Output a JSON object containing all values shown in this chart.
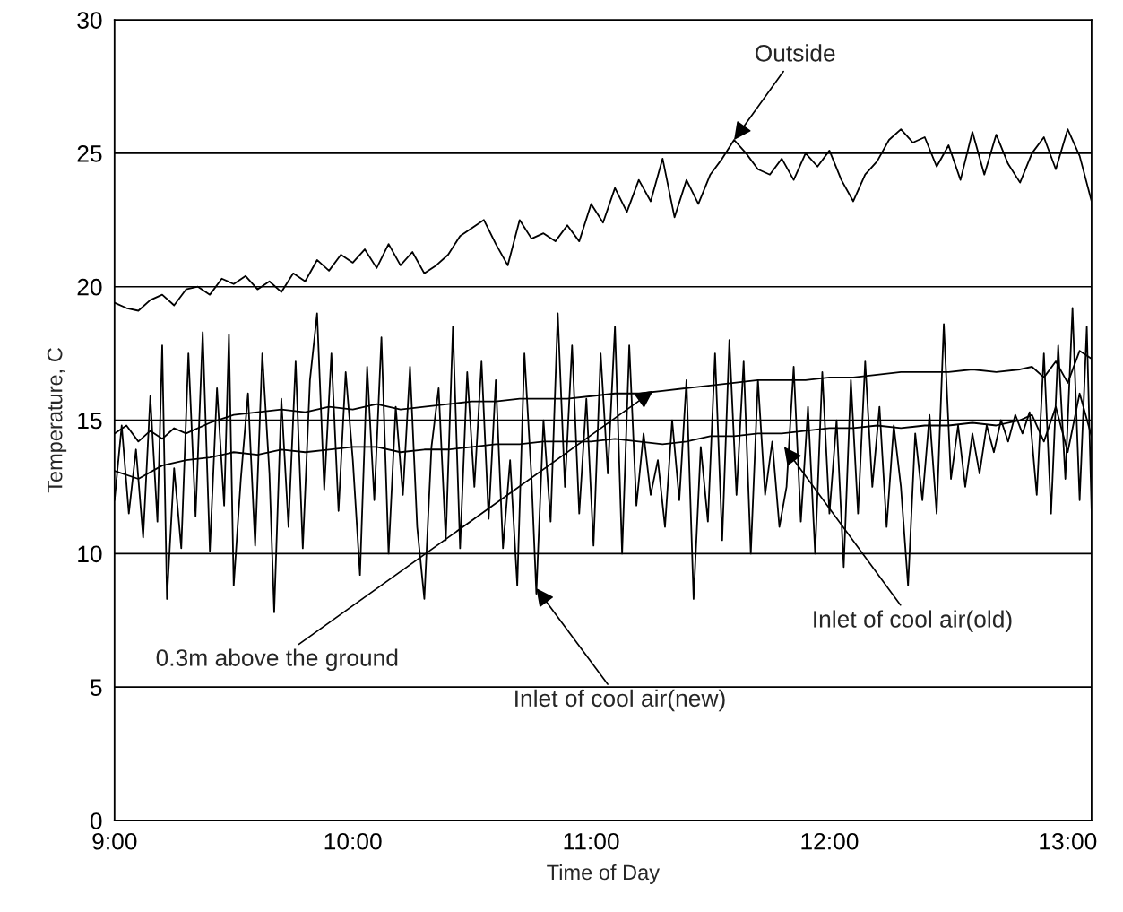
{
  "chart_data": {
    "type": "line",
    "xlabel": "Time of Day",
    "ylabel": "Temperature, C",
    "xlim": [
      9,
      13.1
    ],
    "xticks": [
      {
        "value": 9,
        "label": "9:00"
      },
      {
        "value": 10,
        "label": "10:00"
      },
      {
        "value": 11,
        "label": "11:00"
      },
      {
        "value": 12,
        "label": "12:00"
      },
      {
        "value": 13,
        "label": "13:00"
      }
    ],
    "ylim": [
      0,
      30
    ],
    "yticks": [
      0,
      5,
      10,
      15,
      20,
      25,
      30
    ],
    "grid": "y",
    "legend": false,
    "marker": "none",
    "line_style": "solid",
    "series": [
      {
        "color": "#000000",
        "x": [
          9.0,
          9.05,
          9.1,
          9.15,
          9.2,
          9.25,
          9.3,
          9.35,
          9.4,
          9.45,
          9.5,
          9.55,
          9.6,
          9.65,
          9.7,
          9.75,
          9.8,
          9.85,
          9.9,
          9.95,
          10.0,
          10.05,
          10.1,
          10.15,
          10.2,
          10.25,
          10.3,
          10.35,
          10.4,
          10.45,
          10.5,
          10.55,
          10.6,
          10.65,
          10.7,
          10.75,
          10.8,
          10.85,
          10.9,
          10.95,
          11.0,
          11.05,
          11.1,
          11.15,
          11.2,
          11.25,
          11.3,
          11.35,
          11.4,
          11.45,
          11.5,
          11.55,
          11.6,
          11.65,
          11.7,
          11.75,
          11.8,
          11.85,
          11.9,
          11.95,
          12.0,
          12.05,
          12.1,
          12.15,
          12.2,
          12.25,
          12.3,
          12.35,
          12.4,
          12.45,
          12.5,
          12.55,
          12.6,
          12.65,
          12.7,
          12.75,
          12.8,
          12.85,
          12.9,
          12.95,
          13.0,
          13.05,
          13.1
        ],
        "values": [
          19.4,
          19.2,
          19.1,
          19.5,
          19.7,
          19.3,
          19.9,
          20.0,
          19.7,
          20.3,
          20.1,
          20.4,
          19.9,
          20.2,
          19.8,
          20.5,
          20.2,
          21.0,
          20.6,
          21.2,
          20.9,
          21.4,
          20.7,
          21.6,
          20.8,
          21.3,
          20.5,
          20.8,
          21.2,
          21.9,
          22.2,
          22.5,
          21.6,
          20.8,
          22.5,
          21.8,
          22.0,
          21.7,
          22.3,
          21.7,
          23.1,
          22.4,
          23.7,
          22.8,
          24.0,
          23.2,
          24.8,
          22.6,
          24.0,
          23.1,
          24.2,
          24.8,
          25.5,
          25.0,
          24.4,
          24.2,
          24.8,
          24.0,
          25.0,
          24.5,
          25.1,
          24.0,
          23.2,
          24.2,
          24.7,
          25.5,
          25.9,
          25.4,
          25.6,
          24.5,
          25.3,
          24.0,
          25.8,
          24.2,
          25.7,
          24.6,
          23.9,
          25.0,
          25.6,
          24.4,
          25.9,
          24.9,
          23.2
        ]
      },
      {
        "color": "#000000",
        "x": [
          9.0,
          9.05,
          9.1,
          9.15,
          9.2,
          9.25,
          9.3,
          9.4,
          9.5,
          9.6,
          9.7,
          9.8,
          9.9,
          10.0,
          10.1,
          10.2,
          10.3,
          10.4,
          10.5,
          10.6,
          10.7,
          10.8,
          10.9,
          11.0,
          11.1,
          11.2,
          11.3,
          11.4,
          11.5,
          11.6,
          11.7,
          11.8,
          11.9,
          12.0,
          12.1,
          12.2,
          12.3,
          12.4,
          12.5,
          12.6,
          12.7,
          12.8,
          12.85,
          12.9,
          12.95,
          13.0,
          13.05,
          13.1
        ],
        "values": [
          14.5,
          14.8,
          14.2,
          14.6,
          14.3,
          14.7,
          14.5,
          14.9,
          15.2,
          15.3,
          15.4,
          15.3,
          15.5,
          15.4,
          15.6,
          15.4,
          15.5,
          15.6,
          15.7,
          15.7,
          15.8,
          15.8,
          15.8,
          15.9,
          16.0,
          16.0,
          16.1,
          16.2,
          16.3,
          16.4,
          16.5,
          16.5,
          16.5,
          16.6,
          16.6,
          16.7,
          16.8,
          16.8,
          16.8,
          16.9,
          16.8,
          16.9,
          17.0,
          16.6,
          17.2,
          16.4,
          17.6,
          17.3
        ]
      },
      {
        "color": "#000000",
        "x": [
          9.0,
          9.1,
          9.2,
          9.3,
          9.4,
          9.5,
          9.6,
          9.7,
          9.8,
          9.9,
          10.0,
          10.1,
          10.2,
          10.3,
          10.4,
          10.5,
          10.6,
          10.7,
          10.8,
          10.9,
          11.0,
          11.1,
          11.2,
          11.3,
          11.4,
          11.5,
          11.6,
          11.7,
          11.8,
          11.9,
          12.0,
          12.1,
          12.2,
          12.3,
          12.4,
          12.5,
          12.6,
          12.7,
          12.8,
          12.85,
          12.9,
          12.95,
          13.0,
          13.05,
          13.1
        ],
        "values": [
          13.1,
          12.8,
          13.3,
          13.5,
          13.6,
          13.8,
          13.7,
          13.9,
          13.8,
          13.9,
          14.0,
          14.0,
          13.8,
          13.9,
          13.9,
          14.0,
          14.1,
          14.1,
          14.2,
          14.2,
          14.2,
          14.3,
          14.2,
          14.1,
          14.2,
          14.4,
          14.4,
          14.5,
          14.5,
          14.6,
          14.7,
          14.7,
          14.8,
          14.7,
          14.8,
          14.8,
          14.9,
          14.8,
          15.0,
          15.2,
          14.2,
          15.5,
          13.8,
          16.0,
          14.4
        ]
      },
      {
        "color": "#000000",
        "x": [
          9.0,
          9.03,
          9.06,
          9.09,
          9.12,
          9.15,
          9.18,
          9.2,
          9.22,
          9.25,
          9.28,
          9.31,
          9.34,
          9.37,
          9.4,
          9.43,
          9.46,
          9.48,
          9.5,
          9.53,
          9.56,
          9.59,
          9.62,
          9.65,
          9.67,
          9.7,
          9.73,
          9.76,
          9.79,
          9.82,
          9.85,
          9.88,
          9.91,
          9.94,
          9.97,
          10.0,
          10.03,
          10.06,
          10.09,
          10.12,
          10.15,
          10.18,
          10.21,
          10.24,
          10.27,
          10.3,
          10.33,
          10.36,
          10.39,
          10.42,
          10.45,
          10.48,
          10.51,
          10.54,
          10.57,
          10.6,
          10.63,
          10.66,
          10.69,
          10.72,
          10.75,
          10.77,
          10.8,
          10.83,
          10.86,
          10.89,
          10.92,
          10.95,
          10.98,
          11.01,
          11.04,
          11.07,
          11.1,
          11.13,
          11.16,
          11.19,
          11.22,
          11.25,
          11.28,
          11.31,
          11.34,
          11.37,
          11.4,
          11.43,
          11.46,
          11.49,
          11.52,
          11.55,
          11.58,
          11.61,
          11.64,
          11.67,
          11.7,
          11.73,
          11.76,
          11.79,
          11.82,
          11.85,
          11.88,
          11.91,
          11.94,
          11.97,
          12.0,
          12.03,
          12.06,
          12.09,
          12.12,
          12.15,
          12.18,
          12.21,
          12.24,
          12.27,
          12.3,
          12.33,
          12.36,
          12.39,
          12.42,
          12.45,
          12.48,
          12.51,
          12.54,
          12.57,
          12.6,
          12.63,
          12.66,
          12.69,
          12.72,
          12.75,
          12.78,
          12.81,
          12.84,
          12.87,
          12.9,
          12.93,
          12.96,
          12.99,
          13.02,
          13.05,
          13.08,
          13.1
        ],
        "values": [
          12.0,
          14.8,
          11.5,
          13.9,
          10.6,
          15.9,
          11.2,
          17.8,
          8.3,
          13.2,
          10.2,
          17.5,
          11.4,
          18.3,
          10.1,
          16.2,
          11.8,
          18.2,
          8.8,
          12.8,
          16.0,
          10.3,
          17.5,
          13.0,
          7.8,
          15.8,
          11.0,
          17.2,
          10.2,
          16.5,
          19.0,
          12.4,
          17.5,
          11.6,
          16.8,
          13.5,
          9.2,
          17.0,
          12.0,
          18.1,
          10.0,
          15.5,
          12.2,
          17.0,
          11.0,
          8.3,
          14.0,
          16.2,
          10.5,
          18.5,
          10.2,
          16.8,
          12.5,
          17.2,
          11.3,
          16.5,
          10.2,
          13.5,
          8.8,
          17.5,
          12.8,
          8.5,
          15.0,
          11.2,
          19.0,
          12.5,
          17.8,
          11.5,
          15.8,
          10.3,
          17.5,
          13.0,
          18.5,
          10.0,
          17.8,
          11.8,
          14.5,
          12.2,
          13.5,
          11.0,
          15.0,
          12.0,
          16.5,
          8.3,
          14.0,
          11.2,
          17.5,
          10.5,
          18.0,
          12.2,
          17.2,
          10.0,
          16.5,
          12.2,
          14.2,
          11.0,
          12.5,
          17.0,
          11.2,
          15.5,
          10.0,
          16.8,
          11.5,
          15.0,
          9.5,
          16.5,
          11.5,
          17.2,
          12.5,
          15.5,
          11.0,
          14.8,
          12.5,
          8.8,
          14.5,
          12.0,
          15.2,
          11.5,
          18.6,
          12.8,
          14.8,
          12.5,
          14.5,
          13.0,
          14.8,
          13.8,
          15.0,
          14.2,
          15.2,
          14.5,
          15.3,
          12.2,
          17.5,
          11.5,
          17.8,
          12.8,
          19.2,
          12.0,
          18.5,
          11.6
        ]
      }
    ],
    "annotations": [
      {
        "text": "Outside",
        "x": 11.6,
        "y": 25.5
      },
      {
        "text": "0.3m above the ground",
        "x": 11.26,
        "y": 16.1
      },
      {
        "text": "Inlet of cool air(old)",
        "x": 11.81,
        "y": 14.0
      },
      {
        "text": "Inlet of cool air(new)",
        "x": 10.77,
        "y": 8.7
      }
    ]
  }
}
